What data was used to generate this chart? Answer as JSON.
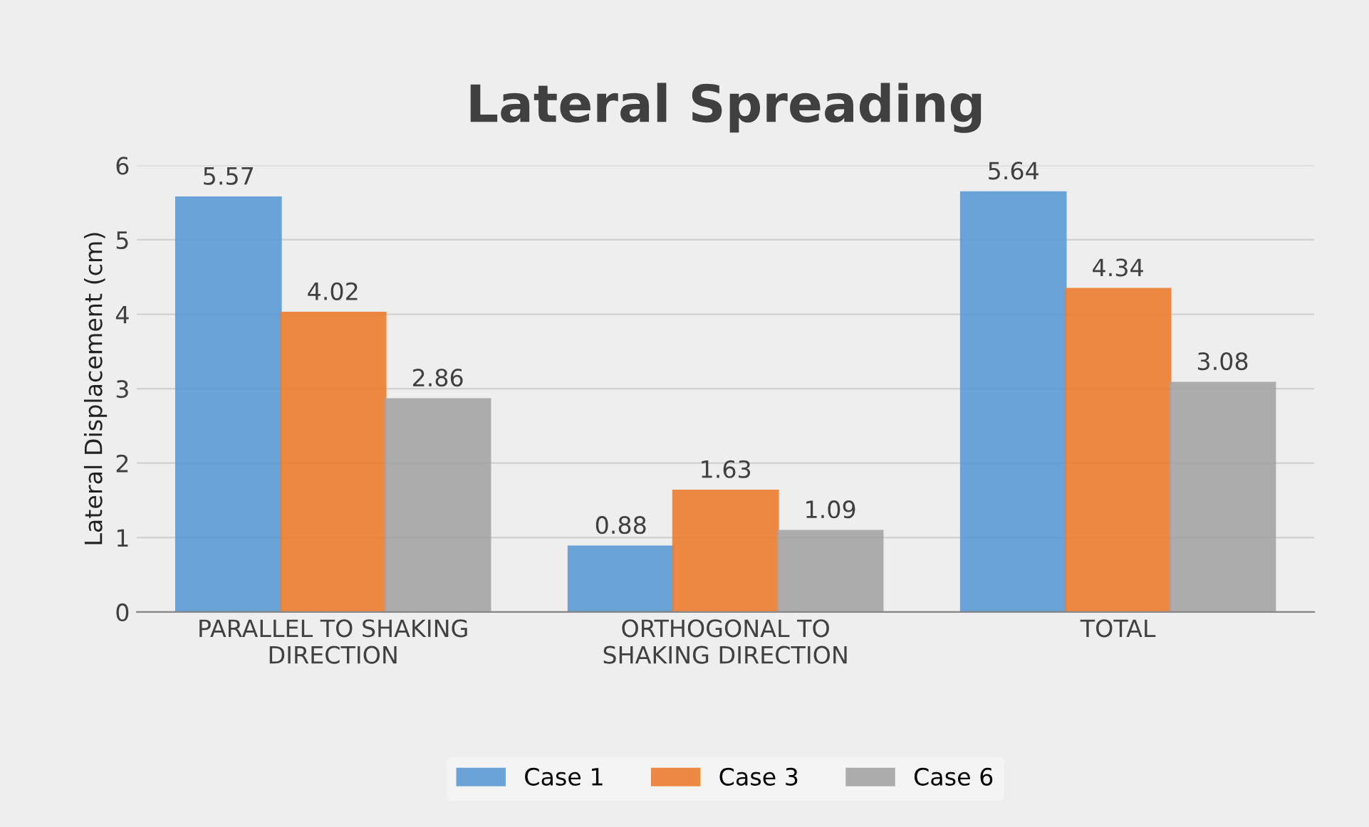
{
  "chart_data": {
    "type": "bar",
    "title": "Lateral Spreading",
    "ylabel": "Lateral Displacement (cm)",
    "categories": [
      "PARALLEL TO SHAKING DIRECTION",
      "ORTHOGONAL TO SHAKING DIRECTION",
      "TOTAL"
    ],
    "series": [
      {
        "name": "Case 1",
        "color": "#5b9bd5",
        "values": [
          5.57,
          0.88,
          5.64
        ]
      },
      {
        "name": "Case 3",
        "color": "#ed7d31",
        "values": [
          4.02,
          1.63,
          4.34
        ]
      },
      {
        "name": "Case 6",
        "color": "#a5a5a5",
        "values": [
          2.86,
          1.09,
          3.08
        ]
      }
    ],
    "ylim": [
      0,
      6
    ],
    "yticks": [
      0,
      1,
      2,
      3,
      4,
      5,
      6
    ],
    "grid": "y",
    "legend": "bottom",
    "data_labels": true
  }
}
